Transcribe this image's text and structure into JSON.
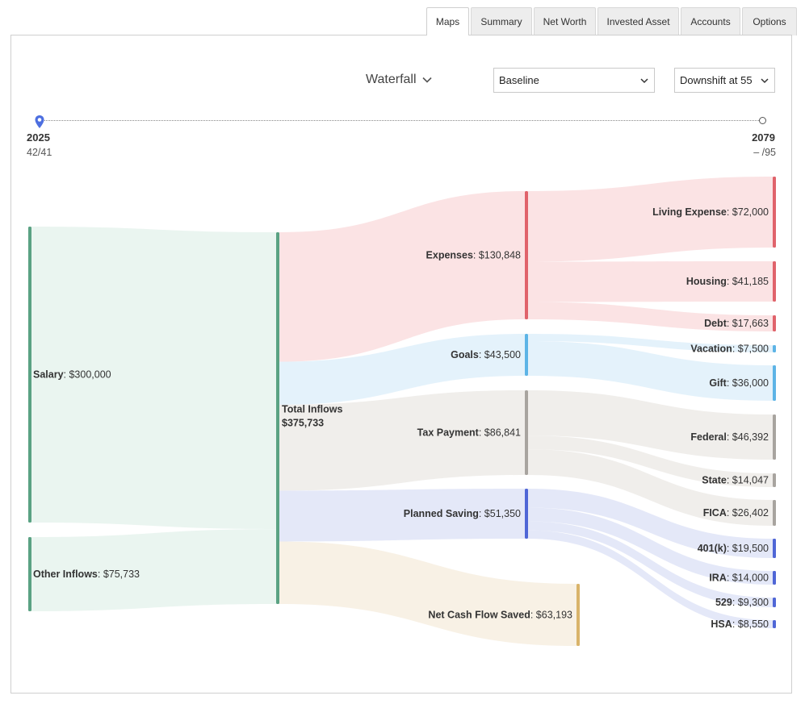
{
  "tabs": [
    {
      "label": "Maps",
      "active": true
    },
    {
      "label": "Summary",
      "active": false
    },
    {
      "label": "Net Worth",
      "active": false
    },
    {
      "label": "Invested Asset",
      "active": false
    },
    {
      "label": "Accounts",
      "active": false
    },
    {
      "label": "Options",
      "active": false
    }
  ],
  "controls": {
    "view_label": "Waterfall",
    "scenario_value": "Baseline",
    "plan_value": "Downshift at 55"
  },
  "timeline": {
    "start_year": "2025",
    "start_ages": "42/41",
    "end_year": "2079",
    "end_ages": "–  /95"
  },
  "colors": {
    "income": "#5aa283",
    "expense": "#e0636b",
    "goal": "#5db4e6",
    "tax": "#a8a49f",
    "saving": "#4f66d6",
    "cashflow": "#d9b46a"
  },
  "chart_data": {
    "type": "sankey",
    "nodes": [
      {
        "id": "salary",
        "name": "Salary",
        "value": "$300,000",
        "color": "income"
      },
      {
        "id": "other",
        "name": "Other Inflows",
        "value": "$75,733",
        "color": "income"
      },
      {
        "id": "total",
        "name": "Total Inflows",
        "value": "$375,733",
        "color": "income"
      },
      {
        "id": "expenses",
        "name": "Expenses",
        "value": "$130,848",
        "color": "expense"
      },
      {
        "id": "goals",
        "name": "Goals",
        "value": "$43,500",
        "color": "goal"
      },
      {
        "id": "tax",
        "name": "Tax Payment",
        "value": "$86,841",
        "color": "tax"
      },
      {
        "id": "saving",
        "name": "Planned Saving",
        "value": "$51,350",
        "color": "saving"
      },
      {
        "id": "netcash",
        "name": "Net Cash Flow Saved",
        "value": "$63,193",
        "color": "cashflow"
      },
      {
        "id": "living",
        "name": "Living Expense",
        "value": "$72,000",
        "color": "expense"
      },
      {
        "id": "housing",
        "name": "Housing",
        "value": "$41,185",
        "color": "expense"
      },
      {
        "id": "debt",
        "name": "Debt",
        "value": "$17,663",
        "color": "expense"
      },
      {
        "id": "vacation",
        "name": "Vacation",
        "value": "$7,500",
        "color": "goal"
      },
      {
        "id": "gift",
        "name": "Gift",
        "value": "$36,000",
        "color": "goal"
      },
      {
        "id": "federal",
        "name": "Federal",
        "value": "$46,392",
        "color": "tax"
      },
      {
        "id": "state",
        "name": "State",
        "value": "$14,047",
        "color": "tax"
      },
      {
        "id": "fica",
        "name": "FICA",
        "value": "$26,402",
        "color": "tax"
      },
      {
        "id": "k401",
        "name": "401(k)",
        "value": "$19,500",
        "color": "saving"
      },
      {
        "id": "ira",
        "name": "IRA",
        "value": "$14,000",
        "color": "saving"
      },
      {
        "id": "s529",
        "name": "529",
        "value": "$9,300",
        "color": "saving"
      },
      {
        "id": "hsa",
        "name": "HSA",
        "value": "$8,550",
        "color": "saving"
      }
    ],
    "links": [
      {
        "source": "salary",
        "target": "total",
        "value": 300000
      },
      {
        "source": "other",
        "target": "total",
        "value": 75733
      },
      {
        "source": "total",
        "target": "expenses",
        "value": 130848
      },
      {
        "source": "total",
        "target": "goals",
        "value": 43500
      },
      {
        "source": "total",
        "target": "tax",
        "value": 86841
      },
      {
        "source": "total",
        "target": "saving",
        "value": 51350
      },
      {
        "source": "total",
        "target": "netcash",
        "value": 63193
      },
      {
        "source": "expenses",
        "target": "living",
        "value": 72000
      },
      {
        "source": "expenses",
        "target": "housing",
        "value": 41185
      },
      {
        "source": "expenses",
        "target": "debt",
        "value": 17663
      },
      {
        "source": "goals",
        "target": "vacation",
        "value": 7500
      },
      {
        "source": "goals",
        "target": "gift",
        "value": 36000
      },
      {
        "source": "tax",
        "target": "federal",
        "value": 46392
      },
      {
        "source": "tax",
        "target": "state",
        "value": 14047
      },
      {
        "source": "tax",
        "target": "fica",
        "value": 26402
      },
      {
        "source": "saving",
        "target": "k401",
        "value": 19500
      },
      {
        "source": "saving",
        "target": "ira",
        "value": 14000
      },
      {
        "source": "saving",
        "target": "s529",
        "value": 9300
      },
      {
        "source": "saving",
        "target": "hsa",
        "value": 8550
      }
    ]
  }
}
